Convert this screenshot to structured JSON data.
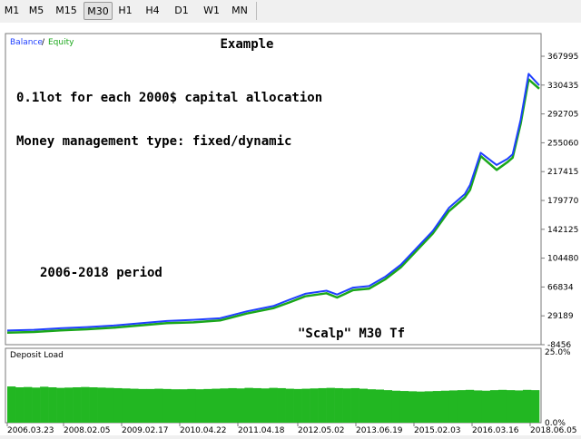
{
  "toolbar": {
    "timeframes": [
      "M1",
      "M5",
      "M15",
      "M30",
      "H1",
      "H4",
      "D1",
      "W1",
      "MN"
    ],
    "active": "M30"
  },
  "chart_data": [
    {
      "type": "line",
      "legend": [
        {
          "label": "Balance",
          "color": "#1f3fff"
        },
        {
          "label": "Equity",
          "color": "#1aa71a"
        }
      ],
      "title": "Example",
      "annotations": [
        "0.1lot for each 2000$ capital allocation",
        "Money management type: fixed/dynamic",
        "2006-2018 period",
        "\"Scalp\" M30 Tf"
      ],
      "yticks": [
        "367995",
        "330435",
        "292705",
        "255060",
        "217415",
        "179770",
        "142125",
        "104480",
        "66834",
        "29189",
        "-8456"
      ],
      "ylim": [
        -8456,
        367995
      ],
      "x": [
        0.0,
        0.05,
        0.1,
        0.15,
        0.2,
        0.25,
        0.3,
        0.35,
        0.4,
        0.45,
        0.5,
        0.53,
        0.56,
        0.6,
        0.62,
        0.65,
        0.68,
        0.71,
        0.74,
        0.77,
        0.8,
        0.83,
        0.86,
        0.87,
        0.89,
        0.92,
        0.94,
        0.95,
        0.965,
        0.98,
        1.0
      ],
      "series": [
        {
          "name": "Balance",
          "color": "#1f3fff",
          "values": [
            10000,
            11000,
            13000,
            14500,
            16500,
            19500,
            22500,
            24000,
            26000,
            35000,
            42000,
            50000,
            58000,
            62000,
            57000,
            66000,
            68000,
            80000,
            96000,
            118000,
            140000,
            170000,
            188000,
            200000,
            242000,
            226000,
            234000,
            240000,
            285000,
            345000,
            330000
          ]
        },
        {
          "name": "Equity",
          "color": "#1aa71a",
          "values": [
            9500,
            10500,
            12500,
            14000,
            16000,
            19000,
            22000,
            23000,
            25500,
            34500,
            41500,
            49000,
            57000,
            61000,
            55500,
            65000,
            67000,
            79000,
            95000,
            117000,
            139000,
            168000,
            186000,
            196000,
            240000,
            222000,
            232000,
            238000,
            282000,
            340000,
            328000
          ]
        }
      ]
    },
    {
      "type": "bar",
      "title": "Deposit Load",
      "yticks": [
        "25.0%",
        "0.0%"
      ],
      "ylim": [
        0,
        25
      ],
      "color": "#22b722",
      "values": [
        12.8,
        12.5,
        12.6,
        12.4,
        12.7,
        12.5,
        12.3,
        12.4,
        12.5,
        12.6,
        12.5,
        12.4,
        12.3,
        12.2,
        12.1,
        12.0,
        11.9,
        11.9,
        12.0,
        11.9,
        11.8,
        11.8,
        11.9,
        11.8,
        11.9,
        12.0,
        12.1,
        12.2,
        12.1,
        12.3,
        12.2,
        12.1,
        12.3,
        12.2,
        12.0,
        11.9,
        12.0,
        12.1,
        12.2,
        12.3,
        12.2,
        12.1,
        12.2,
        12.0,
        11.8,
        11.7,
        11.5,
        11.3,
        11.2,
        11.1,
        11.0,
        11.1,
        11.2,
        11.3,
        11.4,
        11.5,
        11.6,
        11.4,
        11.3,
        11.5,
        11.6,
        11.5,
        11.4,
        11.6,
        11.5
      ],
      "xticks": [
        "2006.03.23",
        "2008.02.05",
        "2009.02.17",
        "2010.04.22",
        "2011.04.18",
        "2012.05.02",
        "2013.06.19",
        "2015.02.03",
        "2016.03.16",
        "2018.06.05"
      ]
    }
  ]
}
